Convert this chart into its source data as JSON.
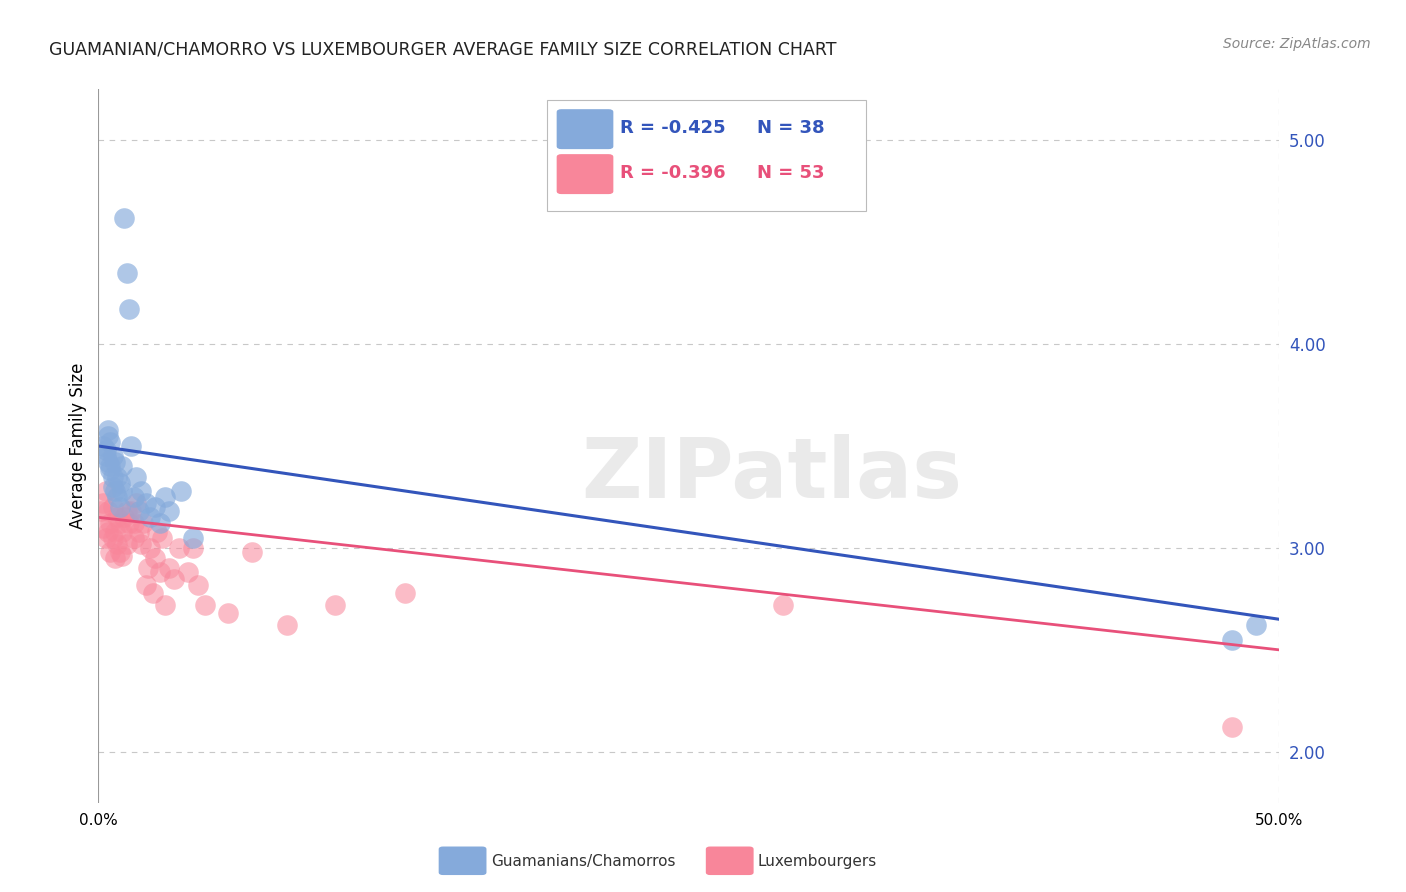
{
  "title": "GUAMANIAN/CHAMORRO VS LUXEMBOURGER AVERAGE FAMILY SIZE CORRELATION CHART",
  "source": "Source: ZipAtlas.com",
  "ylabel": "Average Family Size",
  "right_yticks": [
    2.0,
    3.0,
    4.0,
    5.0
  ],
  "watermark": "ZIPatlas",
  "legend_blue_r": "-0.425",
  "legend_blue_n": "38",
  "legend_pink_r": "-0.396",
  "legend_pink_n": "53",
  "legend_blue_label": "Guamanians/Chamorros",
  "legend_pink_label": "Luxembourgers",
  "blue_scatter_color": "#85AADB",
  "pink_scatter_color": "#F8869A",
  "blue_line_color": "#3355BB",
  "pink_line_color": "#E8507A",
  "bg_color": "#FFFFFF",
  "blue_scatter_x": [
    0.002,
    0.003,
    0.003,
    0.004,
    0.004,
    0.004,
    0.005,
    0.005,
    0.005,
    0.006,
    0.006,
    0.006,
    0.007,
    0.007,
    0.008,
    0.008,
    0.009,
    0.009,
    0.01,
    0.01,
    0.011,
    0.012,
    0.013,
    0.014,
    0.015,
    0.016,
    0.017,
    0.018,
    0.02,
    0.022,
    0.024,
    0.026,
    0.028,
    0.03,
    0.035,
    0.04,
    0.48,
    0.49
  ],
  "blue_scatter_y": [
    3.5,
    3.48,
    3.45,
    3.58,
    3.42,
    3.55,
    3.4,
    3.38,
    3.52,
    3.35,
    3.3,
    3.45,
    3.28,
    3.42,
    3.35,
    3.25,
    3.32,
    3.2,
    3.4,
    3.28,
    4.62,
    4.35,
    4.17,
    3.5,
    3.25,
    3.35,
    3.18,
    3.28,
    3.22,
    3.15,
    3.2,
    3.12,
    3.25,
    3.18,
    3.28,
    3.05,
    2.55,
    2.62
  ],
  "pink_scatter_x": [
    0.001,
    0.002,
    0.002,
    0.003,
    0.003,
    0.004,
    0.004,
    0.005,
    0.005,
    0.006,
    0.006,
    0.007,
    0.007,
    0.008,
    0.008,
    0.009,
    0.009,
    0.01,
    0.01,
    0.011,
    0.012,
    0.012,
    0.013,
    0.014,
    0.015,
    0.015,
    0.016,
    0.017,
    0.018,
    0.019,
    0.02,
    0.021,
    0.022,
    0.023,
    0.024,
    0.025,
    0.026,
    0.027,
    0.028,
    0.03,
    0.032,
    0.034,
    0.038,
    0.04,
    0.042,
    0.045,
    0.055,
    0.065,
    0.08,
    0.1,
    0.13,
    0.29,
    0.48
  ],
  "pink_scatter_y": [
    3.18,
    3.22,
    3.1,
    3.28,
    3.05,
    3.18,
    3.08,
    3.12,
    2.98,
    3.2,
    3.05,
    3.08,
    2.95,
    3.15,
    3.02,
    3.12,
    2.98,
    3.08,
    2.96,
    3.15,
    3.18,
    3.02,
    3.12,
    3.18,
    3.05,
    3.12,
    3.22,
    3.08,
    3.02,
    3.12,
    2.82,
    2.9,
    3.0,
    2.78,
    2.95,
    3.08,
    2.88,
    3.05,
    2.72,
    2.9,
    2.85,
    3.0,
    2.88,
    3.0,
    2.82,
    2.72,
    2.68,
    2.98,
    2.62,
    2.72,
    2.78,
    2.72,
    2.12
  ],
  "xlim": [
    0.0,
    0.5
  ],
  "ylim": [
    1.75,
    5.25
  ],
  "blue_trendline_x": [
    0.0,
    0.5
  ],
  "blue_trendline_y": [
    3.5,
    2.65
  ],
  "pink_trendline_x": [
    0.0,
    0.5
  ],
  "pink_trendline_y": [
    3.15,
    2.5
  ],
  "xticks": [
    0.0,
    0.1,
    0.2,
    0.3,
    0.4,
    0.5
  ],
  "xtick_labels": [
    "0.0%",
    "",
    "",
    "",
    "",
    "50.0%"
  ]
}
